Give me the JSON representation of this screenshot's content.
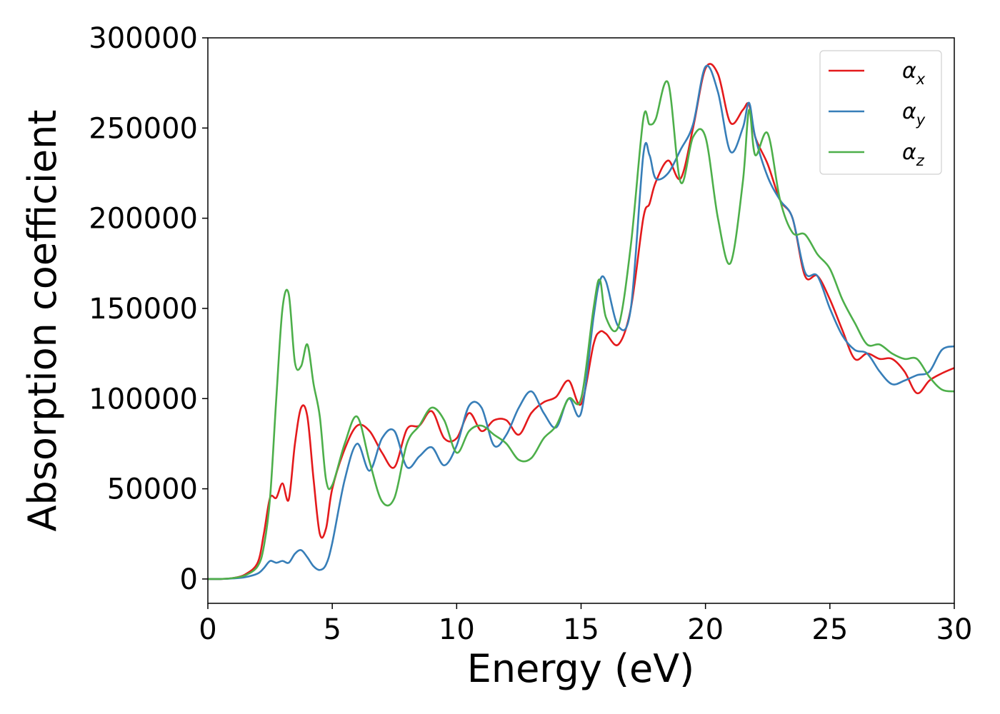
{
  "chart_data": {
    "type": "line",
    "x_label": "Energy (eV)",
    "y_label": "Absorption coefficient",
    "xlim": [
      0,
      30
    ],
    "xticks": [
      0,
      5,
      10,
      15,
      20,
      25,
      30
    ],
    "ylim": [
      -13500,
      300000
    ],
    "yticks": [
      0,
      50000,
      100000,
      150000,
      200000,
      250000,
      300000
    ],
    "grid": false,
    "legend": "upper right",
    "x": [
      0,
      0.5,
      1,
      1.5,
      2,
      2.25,
      2.5,
      2.75,
      3,
      3.25,
      3.5,
      3.75,
      4,
      4.25,
      4.5,
      4.75,
      5,
      5.5,
      6,
      6.5,
      7,
      7.5,
      8,
      8.5,
      9,
      9.5,
      10,
      10.5,
      11,
      11.5,
      12,
      12.5,
      13,
      13.5,
      14,
      14.5,
      15,
      15.5,
      15.75,
      16,
      16.5,
      17,
      17.5,
      17.75,
      18,
      18.5,
      19,
      19.5,
      20,
      20.5,
      21,
      21.5,
      21.75,
      22,
      22.5,
      23,
      23.5,
      24,
      24.5,
      25,
      25.5,
      26,
      26.5,
      27,
      27.5,
      28,
      28.5,
      29,
      29.5,
      30
    ],
    "series": [
      {
        "name": "α_x",
        "color": "#e41a1c",
        "values": [
          0,
          0,
          500,
          2500,
          9000,
          25000,
          45000,
          45000,
          53000,
          44000,
          75000,
          95000,
          90000,
          55000,
          25000,
          28000,
          50000,
          72000,
          85000,
          82000,
          70000,
          62000,
          83000,
          85000,
          93000,
          78000,
          78000,
          92000,
          82000,
          88000,
          88000,
          80000,
          92000,
          98000,
          101000,
          110000,
          97000,
          130000,
          137000,
          136000,
          130000,
          150000,
          200000,
          208000,
          220000,
          232000,
          222000,
          250000,
          283000,
          280000,
          253000,
          260000,
          263000,
          245000,
          230000,
          210000,
          200000,
          168000,
          168000,
          155000,
          138000,
          122000,
          125000,
          122000,
          122000,
          115000,
          103000,
          110000,
          114000,
          117000
        ]
      },
      {
        "name": "α_y",
        "color": "#377eb8",
        "values": [
          0,
          0,
          300,
          1000,
          3000,
          6000,
          10000,
          9000,
          10000,
          9000,
          14000,
          16000,
          12000,
          7000,
          5000,
          8000,
          20000,
          55000,
          75000,
          60000,
          78000,
          82000,
          62000,
          68000,
          73000,
          63000,
          74000,
          96000,
          95000,
          74000,
          80000,
          95000,
          104000,
          92000,
          84000,
          100000,
          92000,
          145000,
          165000,
          165000,
          140000,
          150000,
          235000,
          235000,
          222000,
          225000,
          238000,
          252000,
          284000,
          270000,
          237000,
          250000,
          264000,
          245000,
          223000,
          210000,
          200000,
          170000,
          168000,
          150000,
          135000,
          127000,
          125000,
          115000,
          108000,
          110000,
          113000,
          115000,
          127000,
          129000
        ]
      },
      {
        "name": "α_z",
        "color": "#4daf4a",
        "values": [
          0,
          0,
          500,
          2000,
          7000,
          18000,
          45000,
          100000,
          150000,
          158000,
          120000,
          118000,
          130000,
          108000,
          90000,
          55000,
          52000,
          75000,
          90000,
          65000,
          43000,
          45000,
          75000,
          85000,
          95000,
          88000,
          70000,
          82000,
          85000,
          80000,
          75000,
          66000,
          67000,
          78000,
          85000,
          100000,
          100000,
          150000,
          166000,
          145000,
          140000,
          185000,
          255000,
          252000,
          255000,
          275000,
          220000,
          245000,
          245000,
          200000,
          175000,
          220000,
          260000,
          235000,
          247000,
          210000,
          192000,
          191000,
          180000,
          172000,
          155000,
          142000,
          130000,
          130000,
          125000,
          122000,
          122000,
          112000,
          105000,
          104000
        ]
      }
    ]
  }
}
